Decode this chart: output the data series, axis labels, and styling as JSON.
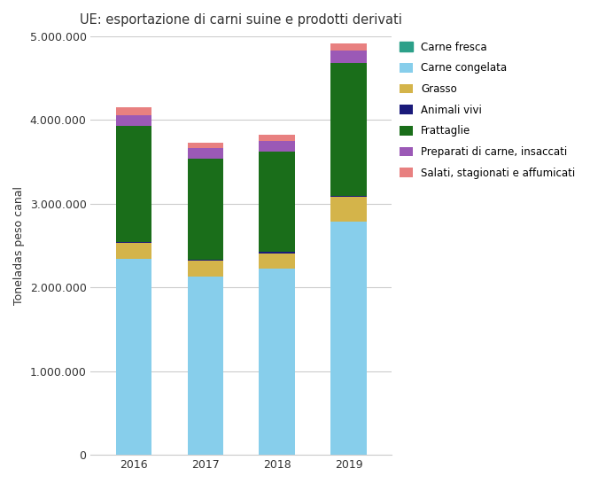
{
  "title": "UE: esportazione di carni suine e prodotti derivati",
  "ylabel": "Toneladas peso canal",
  "years": [
    "2016",
    "2017",
    "2018",
    "2019"
  ],
  "series": [
    {
      "label": "Carne congelata",
      "color": "#87CEEB",
      "values": [
        2340000,
        2130000,
        2220000,
        2790000
      ]
    },
    {
      "label": "Grasso",
      "color": "#d4b44a",
      "values": [
        195000,
        195000,
        190000,
        295000
      ]
    },
    {
      "label": "Animali vivi",
      "color": "#1a1a7a",
      "values": [
        12000,
        10000,
        15000,
        10000
      ]
    },
    {
      "label": "Frattaglie",
      "color": "#1a6e1a",
      "values": [
        1380000,
        1200000,
        1195000,
        1590000
      ]
    },
    {
      "label": "Preparati di carne, insaccati",
      "color": "#9b59b6",
      "values": [
        130000,
        130000,
        130000,
        140000
      ]
    },
    {
      "label": "Salati, stagionati e affumicati",
      "color": "#e88080",
      "values": [
        95000,
        65000,
        75000,
        85000
      ]
    }
  ],
  "legend_order": [
    "Carne fresca",
    "Carne congelata",
    "Grasso",
    "Animali vivi",
    "Frattaglie",
    "Preparati di carne, insaccati",
    "Salati, stagionati e affumicati"
  ],
  "carne_fresca_color": "#2ca089",
  "ylim": [
    0,
    5000000
  ],
  "yticks": [
    0,
    1000000,
    2000000,
    3000000,
    4000000,
    5000000
  ],
  "ytick_labels": [
    "0",
    "1.000.000",
    "2.000.000",
    "3.000.000",
    "4.000.000",
    "5.000.000"
  ],
  "background_color": "#ffffff",
  "grid_color": "#cccccc",
  "bar_width": 0.5
}
